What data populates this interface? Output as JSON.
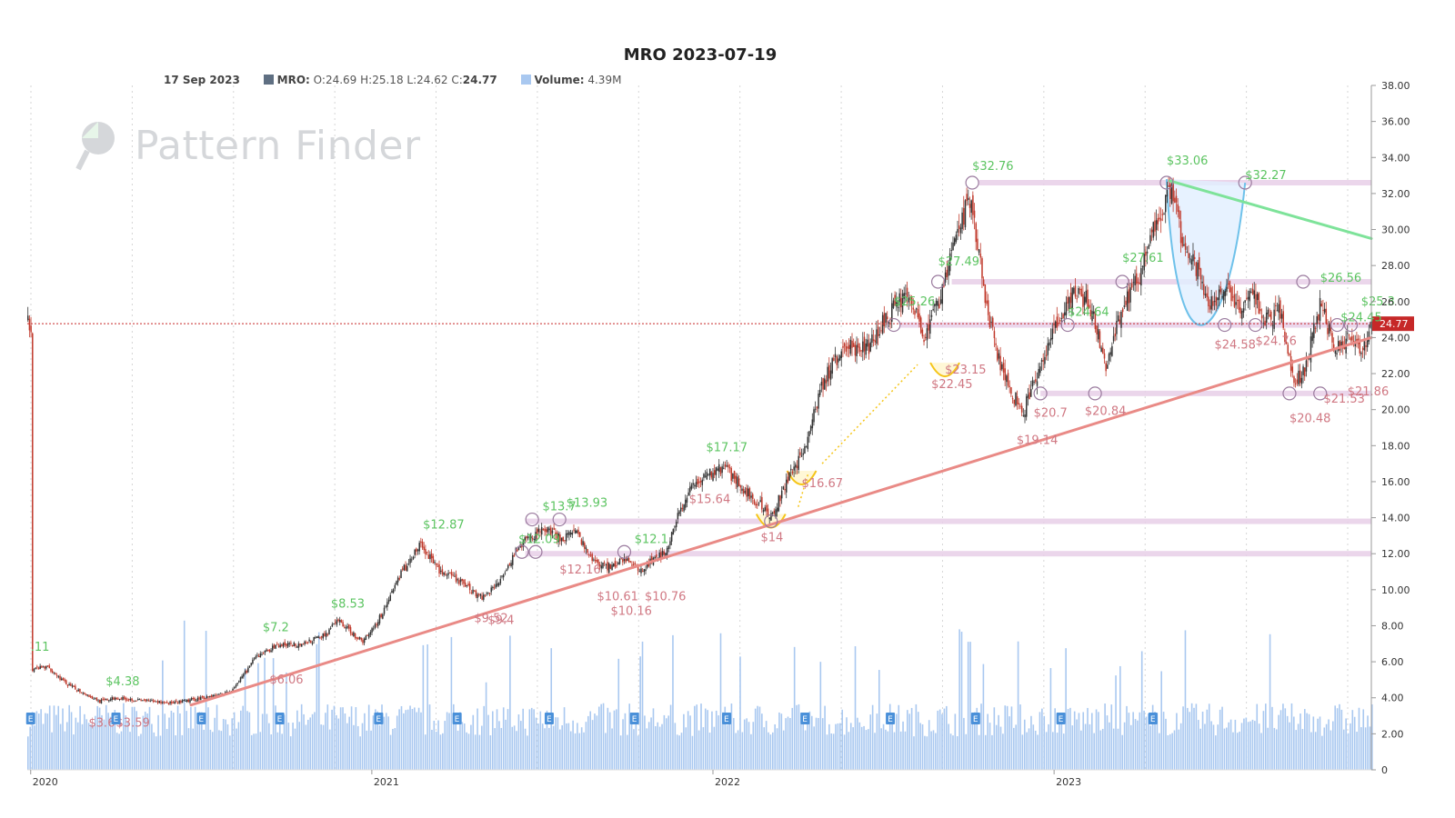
{
  "header": {
    "title": "MRO 2023-07-19",
    "date": "17 Sep 2023",
    "ticker_label": "MRO:",
    "o_label": "O:",
    "o": "24.69",
    "h_label": "H:",
    "h": "25.18",
    "l_label": "L:",
    "l": "24.62",
    "c_label": "C:",
    "c": "24.77",
    "volume_label": "Volume:",
    "volume": "4.39M"
  },
  "watermark": {
    "text": "Pattern Finder"
  },
  "colors": {
    "up": "#333333",
    "down": "#c0392b",
    "volume": "#a9c8f0",
    "support": "#e7cfe8",
    "trend_up": "#e98a86",
    "trend_down": "#7ee39a",
    "high_label": "#5cc461",
    "low_label": "#d07883",
    "current": "#c62828",
    "cup": "#e1efff",
    "cup_line": "#6ec1ea",
    "base": "#f5c518",
    "earnings": "#4a90d9"
  },
  "chart_data": {
    "type": "candlestick",
    "title": "MRO 2023-07-19",
    "y_ticks": [
      "38.00",
      "36.00",
      "34.00",
      "32.00",
      "30.00",
      "28.00",
      "26.00",
      "24.00",
      "22.00",
      "20.00",
      "18.00",
      "16.00",
      "14.00",
      "12.00",
      "10.00",
      "8.00",
      "6.00",
      "4.00",
      "2.00",
      "0"
    ],
    "ylim": [
      0,
      38
    ],
    "x_ticks": [
      {
        "label": "2020",
        "t": 2020.0
      },
      {
        "label": "2021",
        "t": 2021.0
      },
      {
        "label": "2022",
        "t": 2022.0
      },
      {
        "label": "2023",
        "t": 2023.0
      }
    ],
    "xlim": [
      2019.99,
      2023.93
    ],
    "current_price": 24.77,
    "current_price_label": "24.77",
    "price_path": [
      [
        2020.0,
        5.6
      ],
      [
        2020.05,
        5.7
      ],
      [
        2020.1,
        4.8
      ],
      [
        2020.15,
        4.3
      ],
      [
        2020.2,
        3.8
      ],
      [
        2020.25,
        4.0
      ],
      [
        2020.35,
        3.8
      ],
      [
        2020.42,
        3.7
      ],
      [
        2020.5,
        4.0
      ],
      [
        2020.58,
        4.3
      ],
      [
        2020.62,
        5.2
      ],
      [
        2020.66,
        6.3
      ],
      [
        2020.72,
        6.9
      ],
      [
        2020.8,
        7.0
      ],
      [
        2020.86,
        7.5
      ],
      [
        2020.9,
        8.3
      ],
      [
        2020.97,
        7.1
      ],
      [
        2021.02,
        8.4
      ],
      [
        2021.08,
        10.8
      ],
      [
        2021.14,
        12.5
      ],
      [
        2021.2,
        11.0
      ],
      [
        2021.26,
        10.4
      ],
      [
        2021.32,
        9.6
      ],
      [
        2021.36,
        10.2
      ],
      [
        2021.4,
        11.5
      ],
      [
        2021.44,
        12.6
      ],
      [
        2021.5,
        13.4
      ],
      [
        2021.55,
        12.9
      ],
      [
        2021.6,
        13.1
      ],
      [
        2021.64,
        11.7
      ],
      [
        2021.7,
        11.2
      ],
      [
        2021.74,
        11.8
      ],
      [
        2021.78,
        11.0
      ],
      [
        2021.82,
        11.6
      ],
      [
        2021.86,
        12.2
      ],
      [
        2021.9,
        14.3
      ],
      [
        2021.94,
        15.8
      ],
      [
        2021.98,
        16.4
      ],
      [
        2022.03,
        16.8
      ],
      [
        2022.1,
        15.4
      ],
      [
        2022.17,
        14.1
      ],
      [
        2022.22,
        16.2
      ],
      [
        2022.27,
        18.0
      ],
      [
        2022.32,
        21.5
      ],
      [
        2022.38,
        23.5
      ],
      [
        2022.45,
        23.4
      ],
      [
        2022.52,
        25.5
      ],
      [
        2022.57,
        26.5
      ],
      [
        2022.62,
        24.0
      ],
      [
        2022.66,
        26.0
      ],
      [
        2022.7,
        29.0
      ],
      [
        2022.75,
        31.8
      ],
      [
        2022.79,
        27.0
      ],
      [
        2022.83,
        23.0
      ],
      [
        2022.87,
        21.0
      ],
      [
        2022.91,
        20.0
      ],
      [
        2022.95,
        22.0
      ],
      [
        2023.0,
        24.5
      ],
      [
        2023.05,
        26.5
      ],
      [
        2023.1,
        26.0
      ],
      [
        2023.15,
        22.5
      ],
      [
        2023.2,
        25.8
      ],
      [
        2023.25,
        27.5
      ],
      [
        2023.3,
        30.5
      ],
      [
        2023.34,
        32.2
      ],
      [
        2023.38,
        29.0
      ],
      [
        2023.42,
        27.6
      ],
      [
        2023.46,
        25.8
      ],
      [
        2023.5,
        26.8
      ],
      [
        2023.54,
        25.6
      ],
      [
        2023.58,
        26.4
      ],
      [
        2023.62,
        25.0
      ],
      [
        2023.66,
        25.4
      ],
      [
        2023.7,
        21.5
      ],
      [
        2023.73,
        22.0
      ],
      [
        2023.78,
        26.0
      ],
      [
        2023.82,
        23.2
      ],
      [
        2023.86,
        24.0
      ],
      [
        2023.9,
        23.4
      ],
      [
        2023.93,
        24.77
      ]
    ],
    "support_levels": [
      32.6,
      27.1,
      24.7,
      20.9,
      13.8,
      12.0
    ],
    "trendlines": [
      {
        "name": "support",
        "from": [
          2020.47,
          3.6
        ],
        "to": [
          2023.93,
          24.0
        ]
      },
      {
        "name": "resistance",
        "from": [
          2023.34,
          32.7
        ],
        "to": [
          2023.93,
          29.5
        ]
      }
    ],
    "high_labels": [
      {
        "text": ".11",
        "t": 2020.0,
        "v": 6.6
      },
      {
        "text": "$4.38",
        "t": 2020.22,
        "v": 4.7
      },
      {
        "text": "$7.2",
        "t": 2020.68,
        "v": 7.7
      },
      {
        "text": "$8.53",
        "t": 2020.88,
        "v": 9.0
      },
      {
        "text": "$12.87",
        "t": 2021.15,
        "v": 13.4
      },
      {
        "text": "$12.09",
        "t": 2021.43,
        "v": 12.6
      },
      {
        "text": "$13.7",
        "t": 2021.5,
        "v": 14.4
      },
      {
        "text": "$13.93",
        "t": 2021.57,
        "v": 14.6
      },
      {
        "text": "$12.1",
        "t": 2021.77,
        "v": 12.6
      },
      {
        "text": "$17.17",
        "t": 2021.98,
        "v": 17.7
      },
      {
        "text": "$25.26",
        "t": 2022.53,
        "v": 25.8
      },
      {
        "text": "$27.49",
        "t": 2022.66,
        "v": 28.0
      },
      {
        "text": "$32.76",
        "t": 2022.76,
        "v": 33.3
      },
      {
        "text": "$24.64",
        "t": 2023.04,
        "v": 25.2
      },
      {
        "text": "$27.61",
        "t": 2023.2,
        "v": 28.2
      },
      {
        "text": "$33.06",
        "t": 2023.33,
        "v": 33.6
      },
      {
        "text": "$32.27",
        "t": 2023.56,
        "v": 32.8
      },
      {
        "text": "$26.56",
        "t": 2023.78,
        "v": 27.1
      },
      {
        "text": "$24.45",
        "t": 2023.84,
        "v": 24.9
      },
      {
        "text": "$25.3",
        "t": 2023.9,
        "v": 25.8
      }
    ],
    "low_labels": [
      {
        "text": "$3.64",
        "t": 2020.17,
        "v": 2.4
      },
      {
        "text": "$3.59",
        "t": 2020.25,
        "v": 2.4
      },
      {
        "text": "$6.06",
        "t": 2020.7,
        "v": 4.8
      },
      {
        "text": "$9.52",
        "t": 2021.3,
        "v": 8.2
      },
      {
        "text": "$9.4",
        "t": 2021.34,
        "v": 8.1
      },
      {
        "text": "$12.16",
        "t": 2021.55,
        "v": 10.9
      },
      {
        "text": "$10.61",
        "t": 2021.66,
        "v": 9.4
      },
      {
        "text": "$10.16",
        "t": 2021.7,
        "v": 8.6
      },
      {
        "text": "$10.76",
        "t": 2021.8,
        "v": 9.4
      },
      {
        "text": "$15.64",
        "t": 2021.93,
        "v": 14.8
      },
      {
        "text": "$14",
        "t": 2022.14,
        "v": 12.7
      },
      {
        "text": "$16.67",
        "t": 2022.26,
        "v": 15.7
      },
      {
        "text": "$23.15",
        "t": 2022.68,
        "v": 22.0
      },
      {
        "text": "$22.45",
        "t": 2022.64,
        "v": 21.2
      },
      {
        "text": "$19.14",
        "t": 2022.89,
        "v": 18.1
      },
      {
        "text": "$20.7",
        "t": 2022.94,
        "v": 19.6
      },
      {
        "text": "$20.84",
        "t": 2023.09,
        "v": 19.7
      },
      {
        "text": "$24.58",
        "t": 2023.47,
        "v": 23.4
      },
      {
        "text": "$24.76",
        "t": 2023.59,
        "v": 23.6
      },
      {
        "text": "$20.48",
        "t": 2023.69,
        "v": 19.3
      },
      {
        "text": "$21.53",
        "t": 2023.79,
        "v": 20.4
      },
      {
        "text": "$21.86",
        "t": 2023.86,
        "v": 20.8
      }
    ],
    "pivot_circles": [
      [
        2021.44,
        12.1
      ],
      [
        2021.48,
        12.1
      ],
      [
        2021.47,
        13.9
      ],
      [
        2021.55,
        13.9
      ],
      [
        2021.74,
        12.1
      ],
      [
        2022.17,
        13.8
      ],
      [
        2022.53,
        24.7
      ],
      [
        2022.66,
        27.1
      ],
      [
        2022.76,
        32.6
      ],
      [
        2022.96,
        20.9
      ],
      [
        2023.04,
        24.7
      ],
      [
        2023.12,
        20.9
      ],
      [
        2023.2,
        27.1
      ],
      [
        2023.33,
        32.6
      ],
      [
        2023.5,
        24.7
      ],
      [
        2023.56,
        32.6
      ],
      [
        2023.59,
        24.7
      ],
      [
        2023.69,
        20.9
      ],
      [
        2023.73,
        27.1
      ],
      [
        2023.78,
        20.9
      ],
      [
        2023.83,
        24.7
      ],
      [
        2023.87,
        24.7
      ]
    ],
    "earnings_marks": [
      2020.0,
      2020.25,
      2020.5,
      2020.73,
      2021.02,
      2021.25,
      2021.52,
      2021.77,
      2022.04,
      2022.27,
      2022.52,
      2022.77,
      2023.02,
      2023.29
    ],
    "volume_ylim": [
      0,
      120
    ]
  }
}
